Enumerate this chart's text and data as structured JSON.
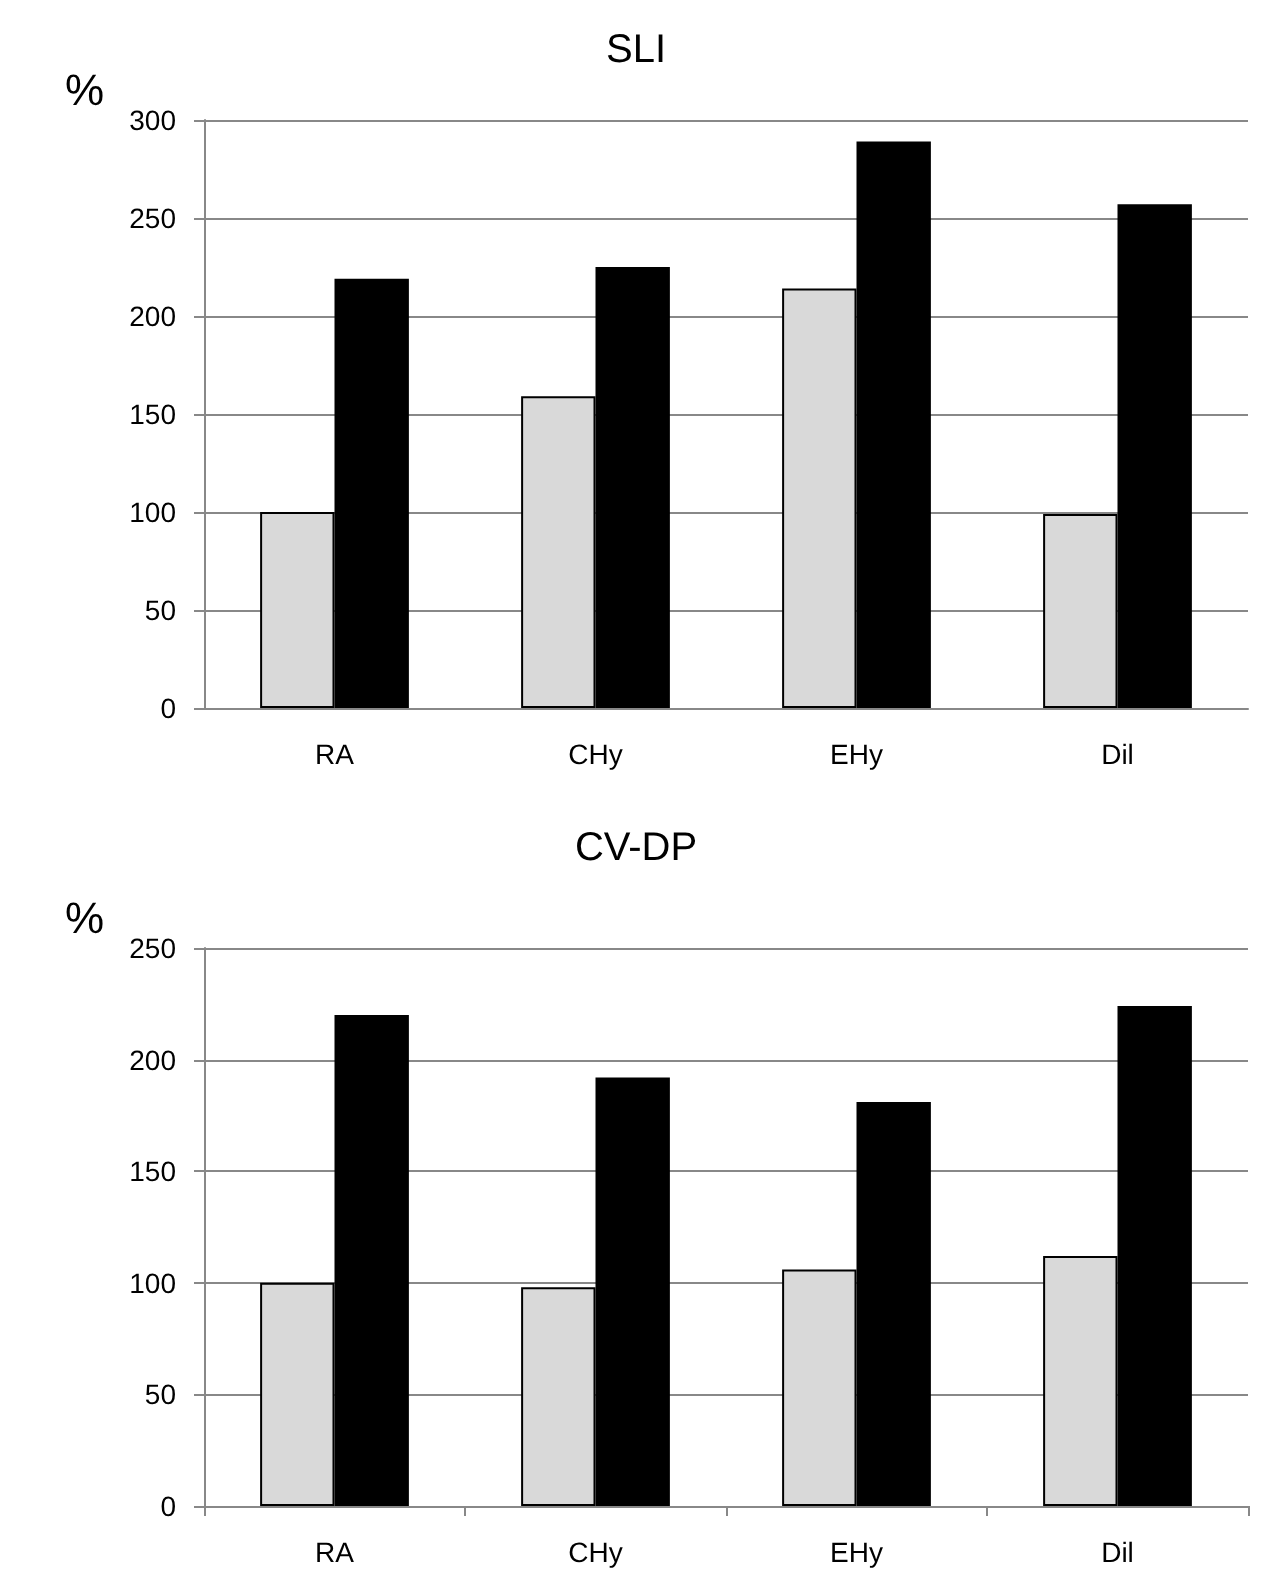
{
  "chart_data": [
    {
      "type": "bar",
      "title": "SLI",
      "ylabel": "%",
      "categories": [
        "RA",
        "CHy",
        "EHy",
        "Dil"
      ],
      "series": [
        {
          "color": "#d9d9d9",
          "values": [
            100,
            159,
            214,
            99
          ]
        },
        {
          "color": "#000000",
          "values": [
            219,
            225,
            289,
            257
          ]
        }
      ],
      "ylim": [
        0,
        300
      ],
      "yticks": [
        0,
        50,
        100,
        150,
        200,
        250,
        300
      ],
      "grid": "y"
    },
    {
      "type": "bar",
      "title": "CV-DP",
      "ylabel": "%",
      "categories": [
        "RA",
        "CHy",
        "EHy",
        "Dil"
      ],
      "series": [
        {
          "color": "#d9d9d9",
          "values": [
            100,
            98,
            106,
            112
          ]
        },
        {
          "color": "#000000",
          "values": [
            220,
            192,
            181,
            224
          ]
        }
      ],
      "ylim": [
        0,
        250
      ],
      "yticks": [
        0,
        50,
        100,
        150,
        200,
        250
      ],
      "grid": "y"
    }
  ]
}
